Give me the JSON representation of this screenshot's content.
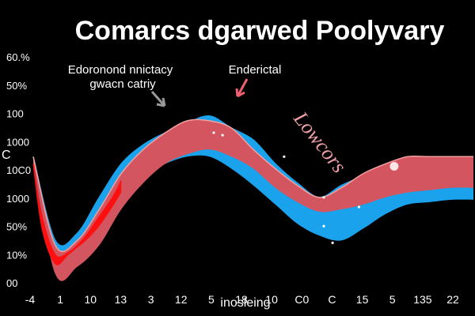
{
  "chart_data": {
    "type": "area",
    "title": "Comarcs dgarwed Poolyvary",
    "xlabel": "inosleing",
    "ylabel": "",
    "x_tick_labels": [
      "-4",
      "1",
      "10",
      "13",
      "3",
      "12",
      "5",
      "18",
      "10",
      "C0",
      "C",
      "15",
      "5",
      "135",
      "22"
    ],
    "y_tick_labels": [
      "00",
      "10%",
      "50%",
      "1000",
      "10C0",
      "1000",
      "100",
      "50%",
      "60.%"
    ],
    "y_side_label": "C",
    "annotations": [
      {
        "lines": [
          "Edoronond nnictacy",
          "gwacn catriy"
        ]
      },
      {
        "lines": [
          "Enderictal"
        ]
      }
    ],
    "callout": "Lowcors",
    "ylim": [
      0,
      100
    ],
    "series": [
      {
        "color": "#1aa3ec",
        "x": [
          0,
          5,
          10,
          15,
          20,
          25,
          30,
          35,
          40,
          45,
          50,
          55,
          60,
          65,
          70,
          75,
          80,
          85,
          90,
          95,
          100
        ],
        "upper": [
          55,
          20,
          23,
          38,
          52,
          60,
          65,
          69,
          72,
          67,
          62,
          52,
          44,
          38,
          43,
          47,
          51,
          52,
          52,
          52,
          52
        ],
        "lower": [
          50,
          9,
          12,
          23,
          37,
          47,
          52,
          55,
          55,
          50,
          43,
          35,
          27,
          22,
          20,
          25,
          31,
          35,
          36,
          37,
          37
        ]
      },
      {
        "color": "#d2555f",
        "x": [
          0,
          5,
          10,
          15,
          20,
          25,
          30,
          35,
          40,
          45,
          50,
          55,
          60,
          65,
          70,
          75,
          80,
          85,
          90,
          95,
          100
        ],
        "upper": [
          55,
          18,
          20,
          33,
          48,
          58,
          65,
          70,
          70,
          67,
          58,
          50,
          43,
          38,
          42,
          48,
          52,
          55,
          55,
          55,
          55
        ],
        "lower": [
          53,
          6,
          9,
          18,
          33,
          44,
          52,
          56,
          58,
          55,
          50,
          42,
          36,
          32,
          33,
          35,
          38,
          40,
          41,
          42,
          42
        ]
      },
      {
        "color": "#ff1010",
        "x": [
          0,
          2,
          5,
          8,
          10,
          12,
          15,
          18,
          20
        ],
        "upper": [
          52,
          30,
          14,
          15,
          18,
          22,
          30,
          38,
          45
        ],
        "lower": [
          50,
          24,
          10,
          14,
          17,
          20,
          26,
          34,
          40
        ]
      }
    ],
    "markers": [
      {
        "x": 41,
        "y": 65,
        "color": "#ffffff"
      },
      {
        "x": 43,
        "y": 64,
        "color": "#ffffff"
      },
      {
        "x": 57,
        "y": 55,
        "color": "#ffffff"
      },
      {
        "x": 66,
        "y": 38,
        "color": "#ffffff"
      },
      {
        "x": 66,
        "y": 26,
        "color": "#ffffff"
      },
      {
        "x": 74,
        "y": 34,
        "color": "#ffffff"
      },
      {
        "x": 68,
        "y": 19,
        "color": "#ffffff"
      },
      {
        "x": 82,
        "y": 51,
        "color": "#ffe6e6"
      }
    ],
    "colors": {
      "background": "#000000",
      "text": "#ffffff",
      "callout": "#f0a0a8",
      "arrow_gray": "#9a9a9a",
      "arrow_pink": "#f06070"
    }
  }
}
